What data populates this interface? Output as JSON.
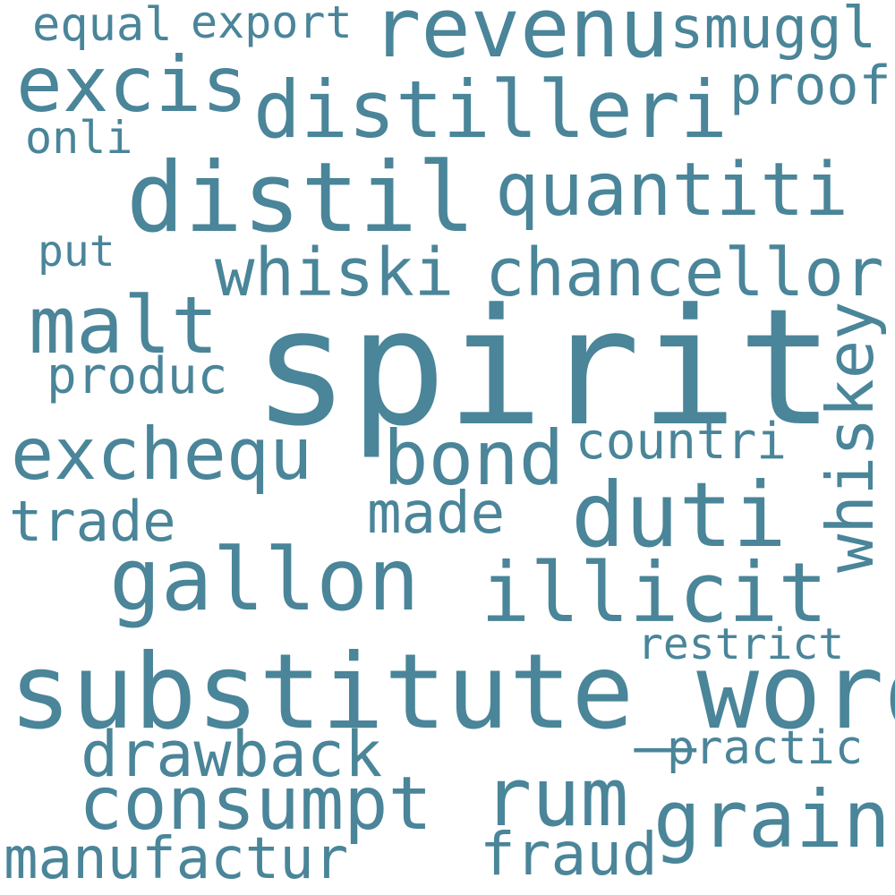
{
  "word_cloud": {
    "color": "#4a8599",
    "words": {
      "spirit": "spirit",
      "substitute_word": "substitute_word",
      "distil": "distil",
      "distilleri": "distilleri",
      "revenu": "revenu",
      "excis": "excis",
      "quantiti": "quantiti",
      "whiski": "whiski",
      "chancellor": "chancellor",
      "malt": "malt",
      "whiskey": "whiskey",
      "exchequ": "exchequ",
      "bond": "bond",
      "duti": "duti",
      "gallon": "gallon",
      "illicit": "illicit",
      "consumpt": "consumpt",
      "rum": "rum",
      "grain": "grain",
      "drawback": "drawback",
      "manufactur": "manufactur",
      "fraud": "fraud",
      "trade": "trade",
      "made": "made",
      "countri": "countri",
      "produc": "produc",
      "restrict": "restrict",
      "practic": "practic",
      "smuggl": "smuggl",
      "proof": "proof",
      "equal": "equal",
      "export": "export",
      "onli": "onli",
      "put": "put"
    }
  }
}
